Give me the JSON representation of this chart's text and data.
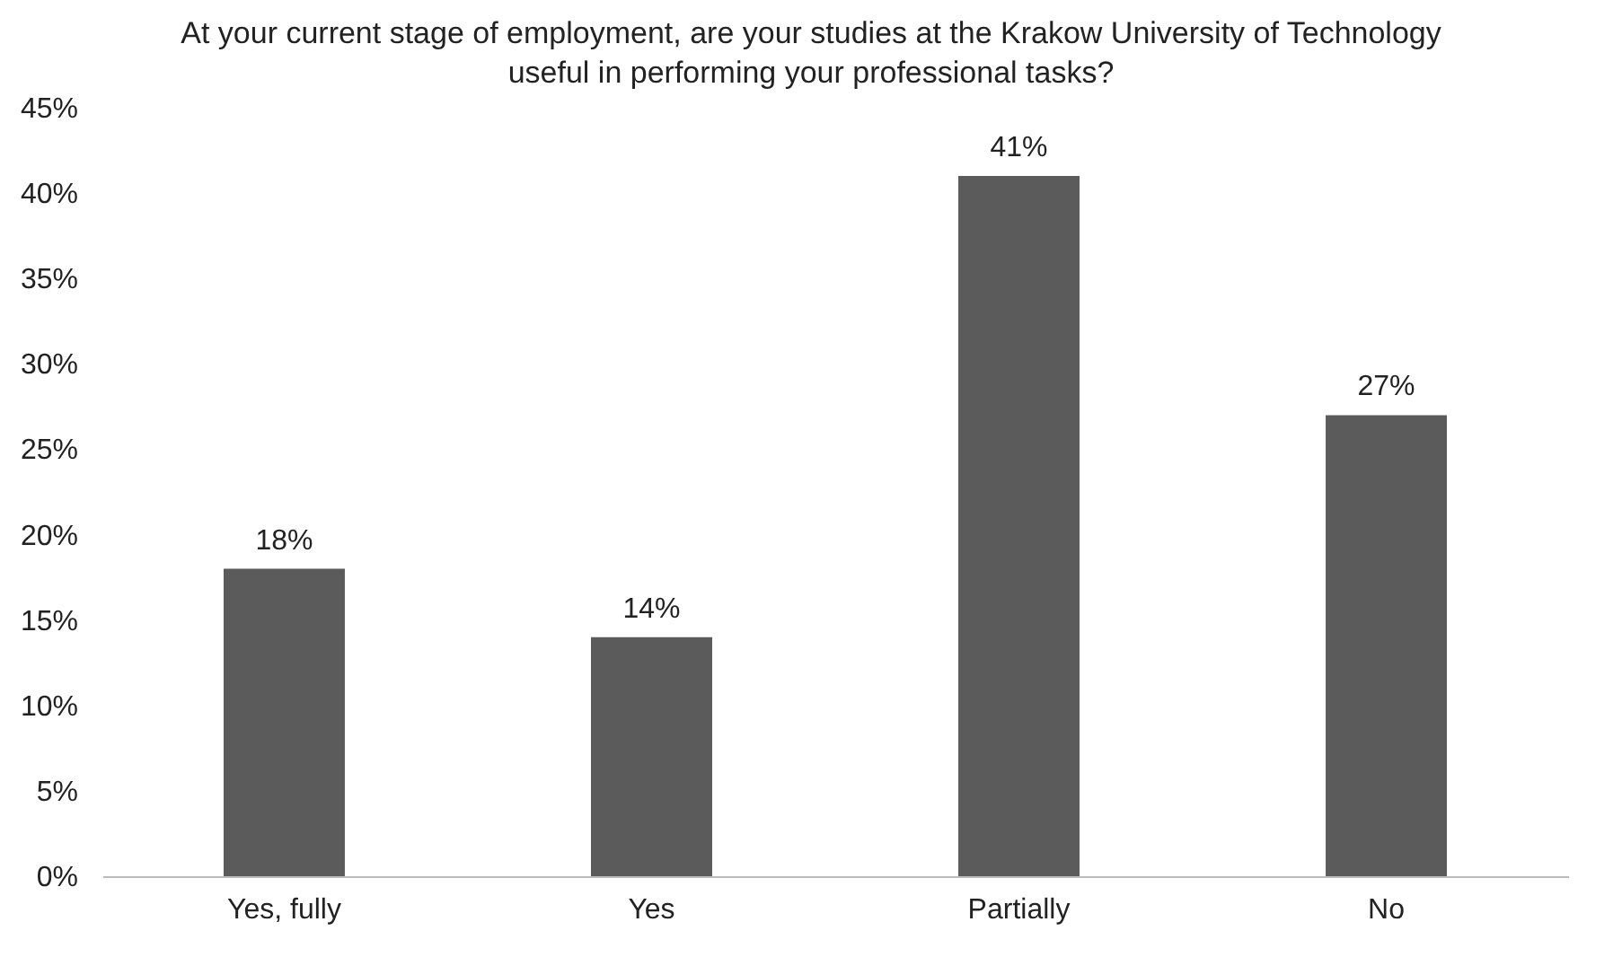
{
  "chart_data": {
    "type": "bar",
    "title": "At your current stage of employment, are your studies at the Krakow University of Technology useful in performing your professional tasks?",
    "categories": [
      "Yes, fully",
      "Yes",
      "Partially",
      "No"
    ],
    "values": [
      18,
      14,
      41,
      27
    ],
    "color": "#5b5b5b",
    "value_labels": [
      "18%",
      "14%",
      "41%",
      "27%"
    ],
    "ylim": [
      0,
      45
    ],
    "yticks": [
      {
        "value": 0,
        "label": "0%"
      },
      {
        "value": 5,
        "label": "5%"
      },
      {
        "value": 10,
        "label": "10%"
      },
      {
        "value": 15,
        "label": "15%"
      },
      {
        "value": 20,
        "label": "20%"
      },
      {
        "value": 25,
        "label": "25%"
      },
      {
        "value": 30,
        "label": "30%"
      },
      {
        "value": 35,
        "label": "35%"
      },
      {
        "value": 40,
        "label": "40%"
      },
      {
        "value": 45,
        "label": "45%"
      }
    ]
  }
}
